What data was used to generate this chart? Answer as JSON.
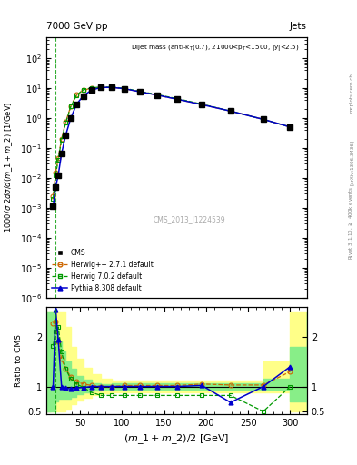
{
  "x_cms": [
    18,
    21,
    24,
    28,
    33,
    39,
    46,
    54,
    64,
    75,
    88,
    103,
    121,
    142,
    166,
    195,
    229,
    268,
    300
  ],
  "y_cms": [
    0.0011,
    0.005,
    0.012,
    0.065,
    0.27,
    1.0,
    2.8,
    5.5,
    8.5,
    10.5,
    10.5,
    9.5,
    7.5,
    5.8,
    4.2,
    2.8,
    1.7,
    0.9,
    0.5
  ],
  "x_mc": [
    18,
    21,
    24,
    28,
    33,
    39,
    46,
    54,
    64,
    75,
    88,
    103,
    121,
    142,
    166,
    195,
    229,
    268,
    300
  ],
  "y_herwig_pp": [
    0.0025,
    0.015,
    0.045,
    0.2,
    0.75,
    2.5,
    6.0,
    8.5,
    10.0,
    10.5,
    10.5,
    9.5,
    7.5,
    5.8,
    4.2,
    2.8,
    1.7,
    0.9,
    0.5
  ],
  "y_herwig702": [
    0.002,
    0.012,
    0.04,
    0.18,
    0.7,
    2.4,
    5.8,
    8.8,
    10.2,
    10.8,
    10.8,
    9.8,
    7.8,
    6.0,
    4.4,
    2.9,
    1.7,
    0.9,
    0.5
  ],
  "y_pythia": [
    0.0011,
    0.005,
    0.012,
    0.065,
    0.27,
    1.0,
    2.9,
    5.6,
    8.6,
    10.5,
    10.5,
    9.5,
    7.5,
    5.8,
    4.2,
    2.8,
    1.7,
    0.9,
    0.5
  ],
  "ratio_x": [
    18,
    21,
    24,
    28,
    33,
    39,
    46,
    54,
    64,
    75,
    88,
    103,
    121,
    142,
    166,
    195,
    229,
    268,
    300
  ],
  "ratio_herwig_pp": [
    2.27,
    2.3,
    1.9,
    1.55,
    1.35,
    1.2,
    1.1,
    1.05,
    1.02,
    1.0,
    1.0,
    1.02,
    1.02,
    1.02,
    1.02,
    1.05,
    1.03,
    1.03,
    1.3
  ],
  "ratio_herwig702": [
    1.82,
    2.1,
    2.2,
    1.7,
    1.35,
    1.15,
    1.05,
    0.98,
    0.88,
    0.82,
    0.82,
    0.82,
    0.82,
    0.82,
    0.82,
    0.82,
    0.82,
    0.5,
    1.0
  ],
  "ratio_pythia": [
    1.0,
    2.55,
    1.95,
    1.0,
    0.97,
    0.95,
    0.97,
    0.98,
    1.0,
    1.0,
    1.0,
    1.0,
    1.0,
    1.0,
    1.0,
    1.02,
    0.68,
    1.0,
    1.4
  ],
  "band_edges": [
    10,
    18,
    21,
    24,
    28,
    33,
    39,
    46,
    54,
    64,
    75,
    88,
    103,
    121,
    142,
    166,
    195,
    229,
    268,
    300,
    320
  ],
  "band_yellow_lo": [
    0.5,
    0.5,
    0.5,
    0.5,
    0.5,
    0.55,
    0.65,
    0.72,
    0.78,
    0.83,
    0.87,
    0.89,
    0.89,
    0.89,
    0.89,
    0.89,
    0.89,
    0.89,
    0.89,
    0.5,
    0.5
  ],
  "band_yellow_hi": [
    2.5,
    2.5,
    2.5,
    2.5,
    2.5,
    2.2,
    1.8,
    1.55,
    1.38,
    1.25,
    1.15,
    1.12,
    1.12,
    1.12,
    1.12,
    1.12,
    1.12,
    1.12,
    1.5,
    2.5,
    2.5
  ],
  "band_green_lo": [
    0.5,
    0.5,
    0.7,
    0.75,
    0.75,
    0.75,
    0.8,
    0.85,
    0.88,
    0.91,
    0.93,
    0.94,
    0.94,
    0.94,
    0.94,
    0.94,
    0.94,
    0.94,
    0.94,
    0.7,
    0.5
  ],
  "band_green_hi": [
    2.5,
    2.5,
    2.2,
    1.9,
    1.7,
    1.5,
    1.35,
    1.22,
    1.13,
    1.07,
    1.05,
    1.06,
    1.06,
    1.06,
    1.06,
    1.06,
    1.06,
    1.06,
    1.15,
    1.8,
    2.5
  ],
  "color_cms": "#000000",
  "color_herwig_pp": "#cc6600",
  "color_herwig702": "#009900",
  "color_pythia": "#0000cc",
  "color_yellow": "#ffff88",
  "color_green": "#88ee88",
  "xlim": [
    10,
    320
  ],
  "ylim_main": [
    1e-06,
    500
  ],
  "ylim_ratio": [
    0.45,
    2.6
  ],
  "vline_x": 21
}
